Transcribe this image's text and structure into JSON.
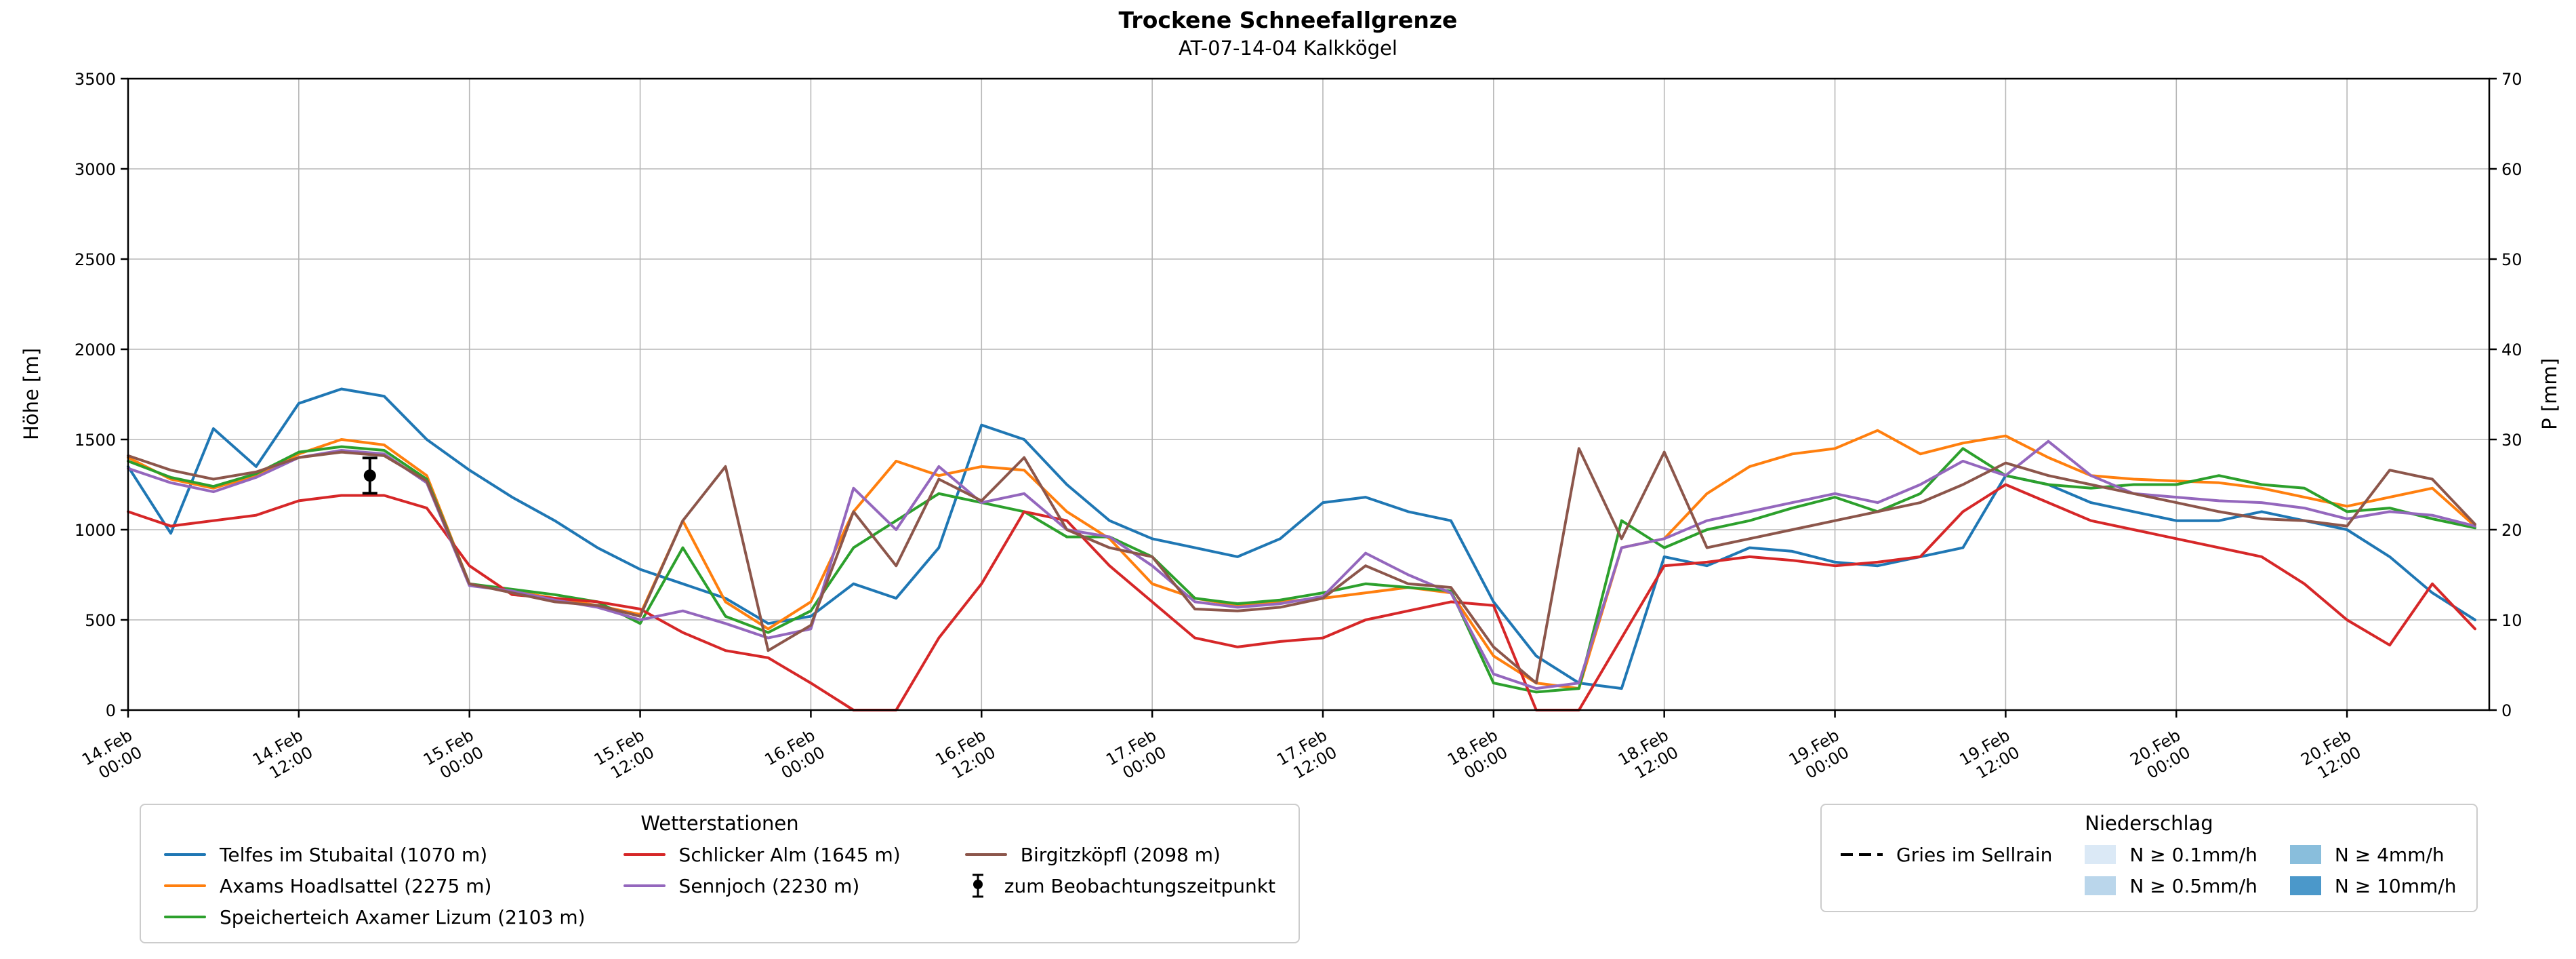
{
  "chart_data": {
    "type": "line",
    "title": "Trockene Schneefallgrenze",
    "subtitle": "AT-07-14-04 Kalkkögel",
    "ylabel_left": "Höhe [m]",
    "ylabel_right": "P [mm]",
    "y_left": {
      "min": 0,
      "max": 3500,
      "step": 500
    },
    "y_right": {
      "min": 0,
      "max": 70,
      "step": 10
    },
    "x_hours_range": [
      0,
      166
    ],
    "grid": true,
    "x_ticks": {
      "hours": [
        0,
        12,
        24,
        36,
        48,
        60,
        72,
        84,
        96,
        108,
        120,
        132,
        144,
        156
      ],
      "labels": [
        "14.Feb 00:00",
        "14.Feb 12:00",
        "15.Feb 00:00",
        "15.Feb 12:00",
        "16.Feb 00:00",
        "16.Feb 12:00",
        "17.Feb 00:00",
        "17.Feb 12:00",
        "18.Feb 00:00",
        "18.Feb 12:00",
        "19.Feb 00:00",
        "19.Feb 12:00",
        "20.Feb 00:00",
        "20.Feb 12:00"
      ]
    },
    "hours": [
      0,
      3,
      6,
      9,
      12,
      15,
      18,
      21,
      24,
      27,
      30,
      33,
      36,
      39,
      42,
      45,
      48,
      51,
      54,
      57,
      60,
      63,
      66,
      69,
      72,
      75,
      78,
      81,
      84,
      87,
      90,
      93,
      96,
      99,
      102,
      105,
      108,
      111,
      114,
      117,
      120,
      123,
      126,
      129,
      132,
      135,
      138,
      141,
      144,
      147,
      150,
      153,
      156,
      159,
      162,
      165
    ],
    "series": [
      {
        "name": "Telfes im Stubaital (1070 m)",
        "color": "#1f77b4",
        "values": [
          1350,
          980,
          1560,
          1350,
          1700,
          1780,
          1740,
          1500,
          1330,
          1180,
          1050,
          900,
          780,
          700,
          620,
          480,
          520,
          700,
          620,
          900,
          1580,
          1500,
          1250,
          1050,
          950,
          900,
          850,
          950,
          1150,
          1180,
          1100,
          1050,
          600,
          300,
          150,
          120,
          850,
          800,
          900,
          880,
          820,
          800,
          850,
          900,
          1300,
          1250,
          1150,
          1100,
          1050,
          1050,
          1100,
          1050,
          1000,
          850,
          650,
          500
        ]
      },
      {
        "name": "Axams Hoadlsattel (2275 m)",
        "color": "#ff7f0e",
        "values": [
          1400,
          1280,
          1230,
          1300,
          1420,
          1500,
          1470,
          1300,
          700,
          660,
          620,
          580,
          530,
          1050,
          600,
          450,
          600,
          1100,
          1380,
          1300,
          1350,
          1330,
          1100,
          950,
          700,
          620,
          580,
          600,
          620,
          650,
          680,
          650,
          300,
          150,
          120,
          900,
          950,
          1200,
          1350,
          1420,
          1450,
          1550,
          1420,
          1480,
          1520,
          1400,
          1300,
          1280,
          1270,
          1260,
          1230,
          1180,
          1130,
          1180,
          1230,
          1020
        ]
      },
      {
        "name": "Speicherteich Axamer Lizum (2103 m)",
        "color": "#2ca02c",
        "values": [
          1380,
          1290,
          1240,
          1310,
          1430,
          1460,
          1440,
          1280,
          700,
          670,
          640,
          600,
          480,
          900,
          520,
          430,
          550,
          900,
          1050,
          1200,
          1150,
          1100,
          960,
          960,
          850,
          620,
          590,
          610,
          650,
          700,
          680,
          660,
          150,
          100,
          120,
          1050,
          900,
          1000,
          1050,
          1120,
          1180,
          1100,
          1200,
          1450,
          1300,
          1250,
          1230,
          1250,
          1250,
          1300,
          1250,
          1230,
          1100,
          1120,
          1060,
          1010
        ]
      },
      {
        "name": "Schlicker Alm (1645 m)",
        "color": "#d62728",
        "values": [
          1100,
          1020,
          1050,
          1080,
          1160,
          1190,
          1190,
          1120,
          800,
          640,
          620,
          600,
          560,
          430,
          330,
          290,
          150,
          0,
          0,
          400,
          700,
          1100,
          1050,
          800,
          600,
          400,
          350,
          380,
          400,
          500,
          550,
          600,
          580,
          0,
          0,
          400,
          800,
          820,
          850,
          830,
          800,
          820,
          850,
          1100,
          1250,
          1150,
          1050,
          1000,
          950,
          900,
          850,
          700,
          500,
          360,
          700,
          450
        ]
      },
      {
        "name": "Sennjoch (2230 m)",
        "color": "#9467bd",
        "values": [
          1340,
          1260,
          1210,
          1290,
          1400,
          1440,
          1420,
          1260,
          690,
          660,
          610,
          570,
          500,
          550,
          480,
          400,
          450,
          1230,
          1000,
          1350,
          1150,
          1200,
          1000,
          960,
          800,
          600,
          570,
          590,
          630,
          870,
          750,
          650,
          200,
          120,
          150,
          900,
          950,
          1050,
          1100,
          1150,
          1200,
          1150,
          1250,
          1380,
          1300,
          1490,
          1300,
          1200,
          1180,
          1160,
          1150,
          1120,
          1060,
          1100,
          1080,
          1020
        ]
      },
      {
        "name": "Birgitzköpfl (2098 m)",
        "color": "#8c564b",
        "values": [
          1410,
          1330,
          1280,
          1320,
          1400,
          1430,
          1410,
          1270,
          700,
          650,
          600,
          580,
          520,
          1050,
          1350,
          330,
          470,
          1100,
          800,
          1280,
          1160,
          1400,
          1000,
          900,
          850,
          560,
          550,
          570,
          620,
          800,
          700,
          680,
          350,
          150,
          1450,
          950,
          1430,
          900,
          950,
          1000,
          1050,
          1100,
          1150,
          1250,
          1370,
          1300,
          1250,
          1200,
          1150,
          1100,
          1060,
          1050,
          1020,
          1330,
          1280,
          1030
        ]
      }
    ],
    "observation_marker": {
      "hour": 17,
      "value_m": 1300,
      "label": "zum Beobachtungszeitpunkt"
    },
    "legend_stations_title": "Wetterstationen",
    "legend_precip": {
      "title": "Niederschlag",
      "dashed_line_label": "Gries im Sellrain",
      "levels": [
        {
          "label": "N ≥ 0.1mm/h",
          "color": "#dbe9f6"
        },
        {
          "label": "N ≥ 0.5mm/h",
          "color": "#bad6eb"
        },
        {
          "label": "N ≥ 4mm/h",
          "color": "#89bedc"
        },
        {
          "label": "N ≥ 10mm/h",
          "color": "#4b98ca"
        }
      ]
    }
  }
}
